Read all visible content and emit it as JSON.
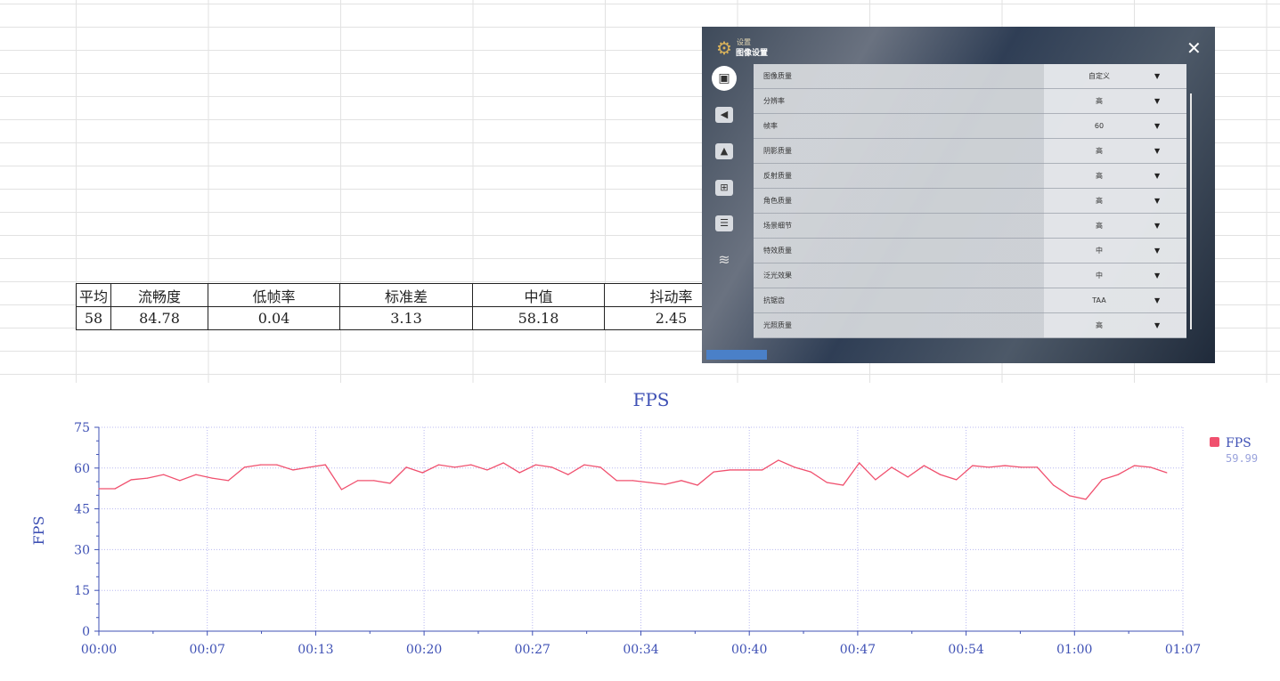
{
  "stats_table": {
    "headers": [
      "平均",
      "流畅度",
      "低帧率",
      "标准差",
      "中值",
      "抖动率"
    ],
    "values": [
      "58",
      "84.78",
      "0.04",
      "3.13",
      "58.18",
      "2.45"
    ]
  },
  "settings_panel": {
    "breadcrumb": "设置",
    "title": "图像设置",
    "sidebar_icons": [
      "display-icon",
      "sound-icon",
      "notification-icon",
      "controls-icon",
      "account-icon",
      "layers-icon"
    ],
    "rows": [
      {
        "label": "图像质量",
        "value": "自定义"
      },
      {
        "label": "分辨率",
        "value": "高"
      },
      {
        "label": "帧率",
        "value": "60"
      },
      {
        "label": "阴影质量",
        "value": "高"
      },
      {
        "label": "反射质量",
        "value": "高"
      },
      {
        "label": "角色质量",
        "value": "高"
      },
      {
        "label": "场景细节",
        "value": "高"
      },
      {
        "label": "特效质量",
        "value": "中"
      },
      {
        "label": "泛光效果",
        "value": "中"
      },
      {
        "label": "抗锯齿",
        "value": "TAA"
      },
      {
        "label": "光照质量",
        "value": "高"
      }
    ]
  },
  "chart_data": {
    "type": "line",
    "title": "FPS",
    "xlabel": "",
    "ylabel": "FPS",
    "ylim": [
      0,
      75
    ],
    "yticks": [
      0,
      15,
      30,
      45,
      60,
      75
    ],
    "xticks": [
      "00:00",
      "00:07",
      "00:13",
      "00:20",
      "00:27",
      "00:34",
      "00:40",
      "00:47",
      "00:54",
      "01:00",
      "01:07"
    ],
    "xlim_seconds": [
      0,
      67
    ],
    "grid": true,
    "legend_position": "right",
    "series": [
      {
        "name": "FPS",
        "legend_value": "59.99",
        "color": "#f0506e",
        "values": [
          52.4,
          52.4,
          55.7,
          56.3,
          57.6,
          55.4,
          57.6,
          56.3,
          55.4,
          60.3,
          61.2,
          61.2,
          59.3,
          60.3,
          61.2,
          52.1,
          55.4,
          55.4,
          54.4,
          60.3,
          58.3,
          61.2,
          60.3,
          61.2,
          59.3,
          61.9,
          58.3,
          61.2,
          60.3,
          57.6,
          61.2,
          60.3,
          55.4,
          55.4,
          54.7,
          54.0,
          55.4,
          53.7,
          58.6,
          59.3,
          59.3,
          59.3,
          62.9,
          60.3,
          58.6,
          54.7,
          53.7,
          61.9,
          55.7,
          60.3,
          56.7,
          60.9,
          57.6,
          55.7,
          60.9,
          60.3,
          60.9,
          60.3,
          60.3,
          53.7,
          49.8,
          48.5,
          55.7,
          57.6,
          60.9,
          60.3,
          58.3
        ]
      }
    ],
    "axis_color": "#3f51b5",
    "grid_color": "#b8b8f0"
  }
}
